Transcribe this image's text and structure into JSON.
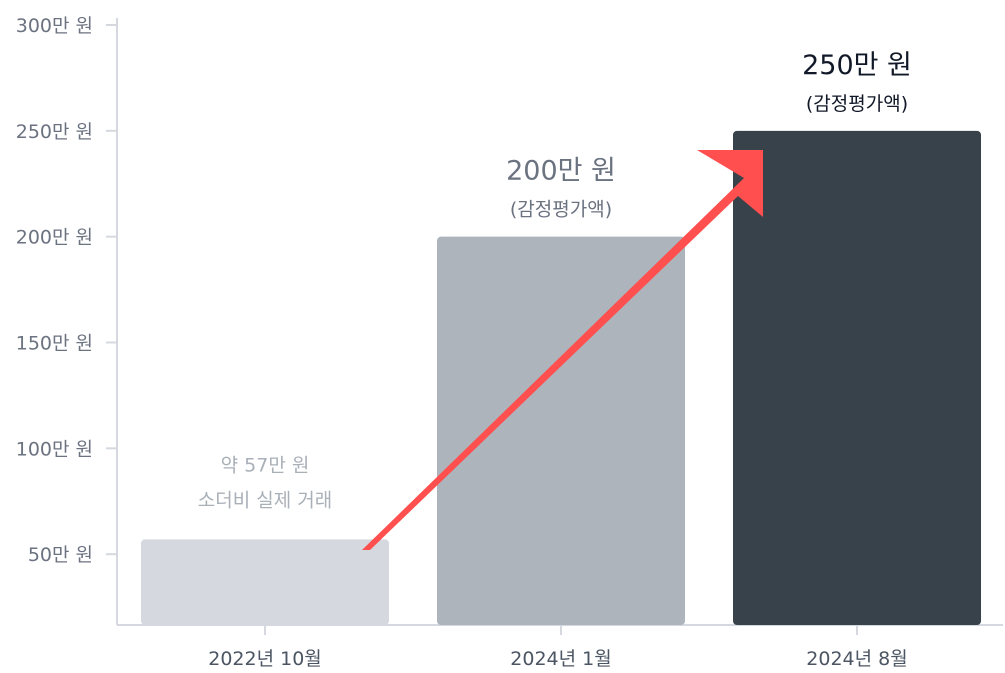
{
  "chart_data": {
    "type": "bar",
    "categories": [
      "2022년 10월",
      "2024년 1월",
      "2024년 8월"
    ],
    "values": [
      57,
      200,
      250
    ],
    "ylim": [
      0,
      300
    ],
    "y_ticks": [
      50,
      100,
      150,
      200,
      250,
      300
    ],
    "y_tick_labels": [
      "50만 원",
      "100만 원",
      "150만 원",
      "200만 원",
      "250만 원",
      "300만 원"
    ],
    "grid": false,
    "bar_colors": [
      "#d5d9df",
      "#adb4bb",
      "#38424b"
    ],
    "annotations": [
      {
        "line1": "약 57만 원",
        "line2": "소더비 실제 거래"
      },
      {
        "line1": "200만 원",
        "line2": "(감정평가액)"
      },
      {
        "line1": "250만 원",
        "line2": "(감정평가액)"
      }
    ],
    "arrow_color": "#ff4f4f",
    "axis_color": "#d5d9df"
  }
}
